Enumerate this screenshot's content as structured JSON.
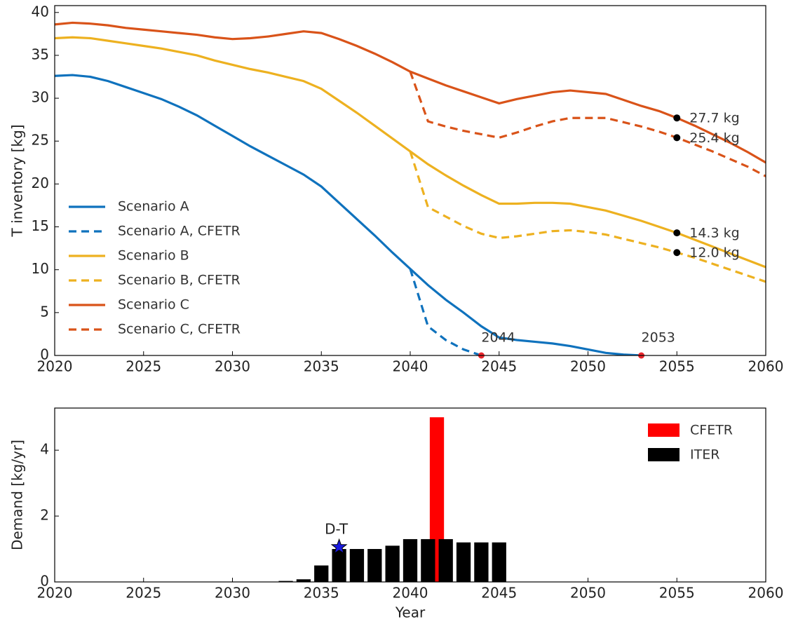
{
  "chart_data": [
    {
      "type": "line",
      "x": [
        2020,
        2021,
        2022,
        2023,
        2024,
        2025,
        2026,
        2027,
        2028,
        2029,
        2030,
        2031,
        2032,
        2033,
        2034,
        2035,
        2036,
        2037,
        2038,
        2039,
        2040,
        2041,
        2042,
        2043,
        2044,
        2045,
        2046,
        2047,
        2048,
        2049,
        2050,
        2051,
        2052,
        2053,
        2054,
        2055,
        2056,
        2057,
        2058,
        2059,
        2060
      ],
      "series": [
        {
          "name": "Scenario A",
          "color": "#0f72bd",
          "dashed": false,
          "values": [
            32.6,
            32.7,
            32.5,
            32.0,
            31.3,
            30.6,
            29.9,
            29.0,
            28.0,
            26.8,
            25.6,
            24.4,
            23.3,
            22.2,
            21.1,
            19.7,
            17.8,
            15.9,
            14.0,
            12.0,
            10.1,
            8.2,
            6.5,
            5.0,
            3.4,
            2.1,
            1.8,
            1.6,
            1.4,
            1.1,
            0.7,
            0.3,
            0.1,
            0.0,
            null,
            null,
            null,
            null,
            null,
            null,
            null
          ]
        },
        {
          "name": "Scenario A, CFETR",
          "color": "#0f72bd",
          "dashed": true,
          "values": [
            null,
            null,
            null,
            null,
            null,
            null,
            null,
            null,
            null,
            null,
            null,
            null,
            null,
            null,
            null,
            null,
            null,
            null,
            null,
            null,
            10.1,
            3.4,
            1.8,
            0.7,
            0.0,
            null,
            null,
            null,
            null,
            null,
            null,
            null,
            null,
            null,
            null,
            null,
            null,
            null,
            null,
            null,
            null
          ]
        },
        {
          "name": "Scenario B",
          "color": "#edb120",
          "dashed": false,
          "values": [
            37.0,
            37.1,
            37.0,
            36.7,
            36.4,
            36.1,
            35.8,
            35.4,
            35.0,
            34.4,
            33.9,
            33.4,
            33.0,
            32.5,
            32.0,
            31.1,
            29.7,
            28.3,
            26.8,
            25.3,
            23.8,
            22.3,
            21.0,
            19.8,
            18.7,
            17.7,
            17.7,
            17.8,
            17.8,
            17.7,
            17.3,
            16.9,
            16.3,
            15.7,
            15.0,
            14.3,
            13.5,
            12.7,
            11.9,
            11.1,
            10.3
          ]
        },
        {
          "name": "Scenario B, CFETR",
          "color": "#edb120",
          "dashed": true,
          "values": [
            null,
            null,
            null,
            null,
            null,
            null,
            null,
            null,
            null,
            null,
            null,
            null,
            null,
            null,
            null,
            null,
            null,
            null,
            null,
            null,
            23.8,
            17.3,
            16.2,
            15.1,
            14.2,
            13.7,
            13.9,
            14.2,
            14.5,
            14.6,
            14.4,
            14.1,
            13.6,
            13.1,
            12.6,
            12.0,
            11.4,
            10.7,
            10.0,
            9.3,
            8.6
          ]
        },
        {
          "name": "Scenario C",
          "color": "#d95319",
          "dashed": false,
          "values": [
            38.6,
            38.8,
            38.7,
            38.5,
            38.2,
            38.0,
            37.8,
            37.6,
            37.4,
            37.1,
            36.9,
            37.0,
            37.2,
            37.5,
            37.8,
            37.6,
            36.9,
            36.1,
            35.2,
            34.2,
            33.1,
            32.3,
            31.5,
            30.8,
            30.1,
            29.4,
            29.9,
            30.3,
            30.7,
            30.9,
            30.7,
            30.5,
            29.8,
            29.1,
            28.5,
            27.7,
            26.8,
            25.8,
            24.8,
            23.7,
            22.5
          ]
        },
        {
          "name": "Scenario C, CFETR",
          "color": "#d95319",
          "dashed": true,
          "values": [
            null,
            null,
            null,
            null,
            null,
            null,
            null,
            null,
            null,
            null,
            null,
            null,
            null,
            null,
            null,
            null,
            null,
            null,
            null,
            null,
            33.1,
            27.3,
            26.7,
            26.2,
            25.8,
            25.4,
            26.0,
            26.7,
            27.3,
            27.7,
            27.7,
            27.7,
            27.2,
            26.7,
            26.1,
            25.4,
            24.6,
            23.8,
            22.9,
            22.0,
            20.9
          ]
        }
      ],
      "markers": [
        {
          "x": 2055,
          "y": 27.7,
          "label": "27.7 kg"
        },
        {
          "x": 2055,
          "y": 25.4,
          "label": "25.4 kg"
        },
        {
          "x": 2055,
          "y": 14.3,
          "label": "14.3 kg"
        },
        {
          "x": 2055,
          "y": 12.0,
          "label": "12.0 kg"
        }
      ],
      "depletion_years": [
        2044,
        2053
      ],
      "xlim": [
        2020,
        2060
      ],
      "xticks": [
        2020,
        2025,
        2030,
        2035,
        2040,
        2045,
        2050,
        2055,
        2060
      ],
      "ylim": [
        0,
        40.8
      ],
      "yticks": [
        0,
        5,
        10,
        15,
        20,
        25,
        30,
        35,
        40
      ],
      "ylabel": "T inventory [kg]",
      "legend": "lower left"
    },
    {
      "type": "bar",
      "series": [
        {
          "name": "CFETR",
          "color": "#ff0000",
          "x": [
            2041.5
          ],
          "values": [
            5.0
          ]
        },
        {
          "name": "ITER",
          "color": "#000000",
          "x": [
            2032,
            2033,
            2034,
            2035,
            2036,
            2037,
            2038,
            2039,
            2040,
            2041,
            2042,
            2043,
            2044,
            2045
          ],
          "values": [
            0.01,
            0.03,
            0.08,
            0.5,
            1.0,
            1.0,
            1.0,
            1.1,
            1.3,
            1.3,
            1.3,
            1.2,
            1.2,
            1.2
          ]
        }
      ],
      "annotation": {
        "x": 2036,
        "y": 1.06,
        "label": "D-T"
      },
      "xlim": [
        2020,
        2060
      ],
      "xticks": [
        2020,
        2025,
        2030,
        2035,
        2040,
        2045,
        2050,
        2055,
        2060
      ],
      "ylim": [
        0,
        5.28
      ],
      "yticks": [
        0,
        2,
        4
      ],
      "xlabel": "Year",
      "ylabel": "Demand [kg/yr]",
      "legend": "upper right"
    }
  ]
}
